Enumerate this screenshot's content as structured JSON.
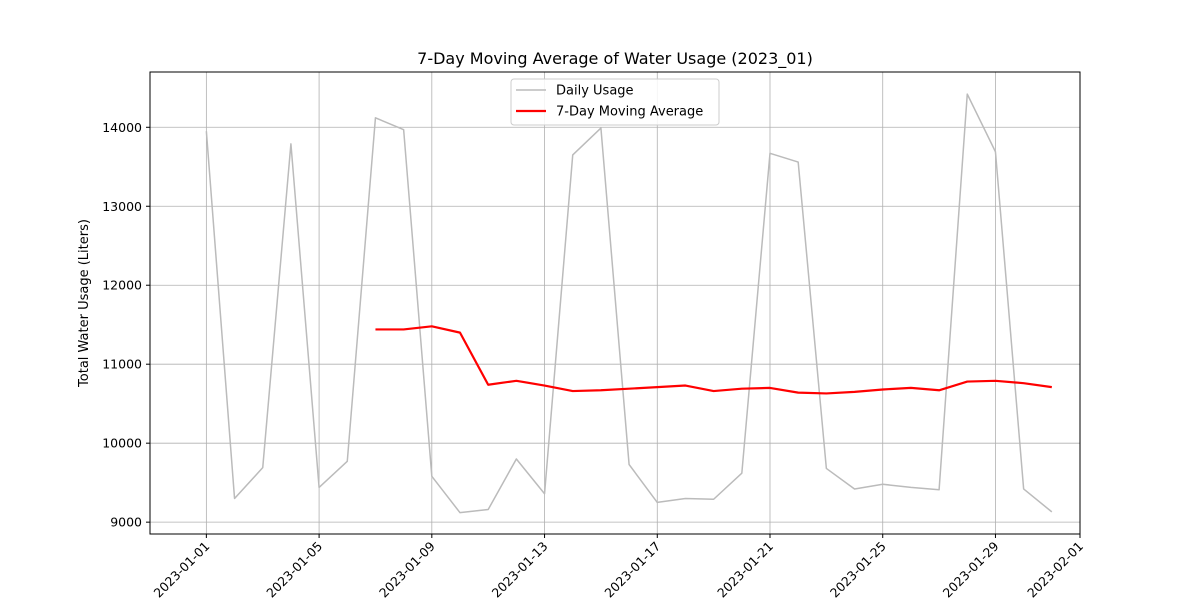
{
  "chart_data": {
    "type": "line",
    "title": "7-Day Moving Average of Water Usage (2023_01)",
    "xlabel": "",
    "ylabel": "Total Water Usage (Liters)",
    "x": [
      "2023-01-01",
      "2023-01-02",
      "2023-01-03",
      "2023-01-04",
      "2023-01-05",
      "2023-01-06",
      "2023-01-07",
      "2023-01-08",
      "2023-01-09",
      "2023-01-10",
      "2023-01-11",
      "2023-01-12",
      "2023-01-13",
      "2023-01-14",
      "2023-01-15",
      "2023-01-16",
      "2023-01-17",
      "2023-01-18",
      "2023-01-19",
      "2023-01-20",
      "2023-01-21",
      "2023-01-22",
      "2023-01-23",
      "2023-01-24",
      "2023-01-25",
      "2023-01-26",
      "2023-01-27",
      "2023-01-28",
      "2023-01-29",
      "2023-01-30",
      "2023-01-31"
    ],
    "series": [
      {
        "name": "Daily Usage",
        "color": "#bbbbbb",
        "values": [
          13950,
          9300,
          9690,
          13790,
          9440,
          9770,
          14120,
          13970,
          9580,
          9120,
          9160,
          9800,
          9360,
          13650,
          13990,
          9730,
          9250,
          9300,
          9290,
          9620,
          13670,
          13560,
          9680,
          9420,
          9480,
          9440,
          9410,
          14420,
          13690,
          9420,
          9130
        ]
      },
      {
        "name": "7-Day Moving Average",
        "color": "#ff0000",
        "values": [
          null,
          null,
          null,
          null,
          null,
          null,
          11440,
          11440,
          11480,
          11400,
          10740,
          10790,
          10730,
          10660,
          10670,
          10690,
          10710,
          10730,
          10660,
          10690,
          10700,
          10640,
          10630,
          10650,
          10680,
          10700,
          10670,
          10780,
          10790,
          10760,
          10710
        ]
      }
    ],
    "xticks": [
      "2023-01-01",
      "2023-01-05",
      "2023-01-09",
      "2023-01-13",
      "2023-01-17",
      "2023-01-21",
      "2023-01-25",
      "2023-01-29",
      "2023-02-01"
    ],
    "yticks": [
      9000,
      10000,
      11000,
      12000,
      13000,
      14000
    ],
    "xlim": [
      "2022-12-30",
      "2023-02-01"
    ],
    "ylim": [
      8850,
      14700
    ],
    "grid": true,
    "legend_position": "upper center"
  }
}
